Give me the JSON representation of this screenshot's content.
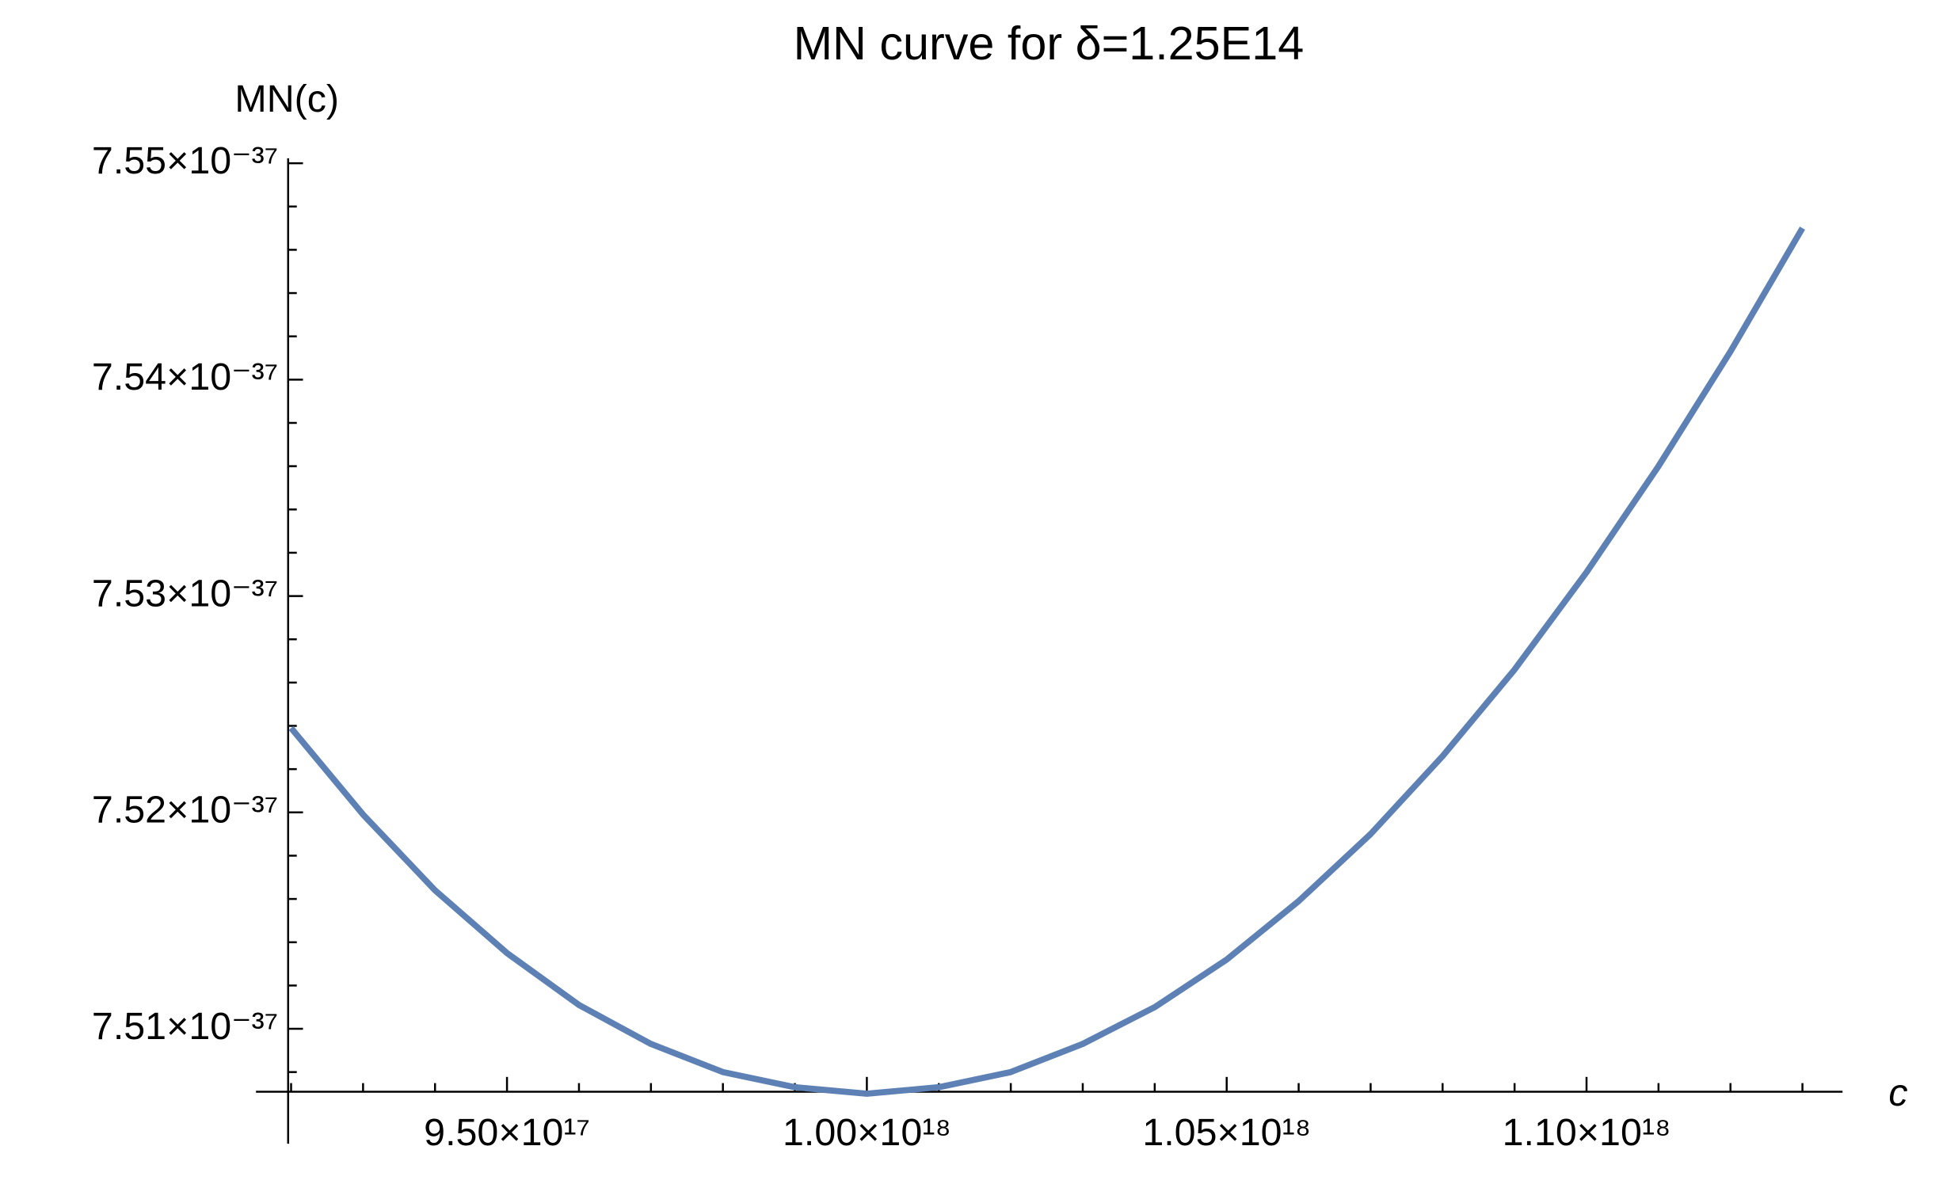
{
  "chart_data": {
    "type": "line",
    "title": "MN curve for δ=1.25E14",
    "x_label": "c",
    "y_label": "MN(c)",
    "x": [
      9.2e+17,
      9.3e+17,
      9.4e+17,
      9.5e+17,
      9.6e+17,
      9.7e+17,
      9.8e+17,
      9.9e+17,
      1e+18,
      1.01e+18,
      1.02e+18,
      1.03e+18,
      1.04e+18,
      1.05e+18,
      1.06e+18,
      1.07e+18,
      1.08e+18,
      1.09e+18,
      1.1e+18,
      1.11e+18,
      1.12e+18,
      1.13e+18
    ],
    "series": [
      {
        "name": "MN(c)",
        "color": "#5e81b5",
        "values": [
          7.5239e-37,
          7.5199e-37,
          7.5164e-37,
          7.5135e-37,
          7.5111e-37,
          7.5093e-37,
          7.508e-37,
          7.5073e-37,
          7.507e-37,
          7.5073e-37,
          7.508e-37,
          7.5093e-37,
          7.511e-37,
          7.5132e-37,
          7.5159e-37,
          7.519e-37,
          7.5226e-37,
          7.5266e-37,
          7.5311e-37,
          7.536e-37,
          7.5413e-37,
          7.547e-37
        ]
      }
    ],
    "xlim": [
      9.1959e+17,
      1.13557e+18
    ],
    "ylim": [
      7.50709e-37,
      7.55023e-37
    ],
    "xticks": [
      {
        "value": 9.5e+17,
        "label": "9.50×10¹⁷"
      },
      {
        "value": 1e+18,
        "label": "1.00×10¹⁸"
      },
      {
        "value": 1.05e+18,
        "label": "1.05×10¹⁸"
      },
      {
        "value": 1.1e+18,
        "label": "1.10×10¹⁸"
      }
    ],
    "yticks": [
      {
        "value": 7.51e-37,
        "label": "7.51×10⁻³⁷"
      },
      {
        "value": 7.52e-37,
        "label": "7.52×10⁻³⁷"
      },
      {
        "value": 7.53e-37,
        "label": "7.53×10⁻³⁷"
      },
      {
        "value": 7.54e-37,
        "label": "7.54×10⁻³⁷"
      },
      {
        "value": 7.55e-37,
        "label": "7.55×10⁻³⁷"
      }
    ],
    "xminorticks": [
      9.2e+17,
      9.3e+17,
      9.4e+17,
      9.6e+17,
      9.7e+17,
      9.8e+17,
      9.9e+17,
      1.01e+18,
      1.02e+18,
      1.03e+18,
      1.04e+18,
      1.06e+18,
      1.07e+18,
      1.08e+18,
      1.09e+18,
      1.11e+18,
      1.12e+18,
      1.13e+18
    ],
    "yminorticks": [
      7.508e-37,
      7.512e-37,
      7.514e-37,
      7.516e-37,
      7.518e-37,
      7.522e-37,
      7.524e-37,
      7.526e-37,
      7.528e-37,
      7.532e-37,
      7.534e-37,
      7.536e-37,
      7.538e-37,
      7.542e-37,
      7.544e-37,
      7.546e-37,
      7.548e-37
    ],
    "grid": false
  }
}
